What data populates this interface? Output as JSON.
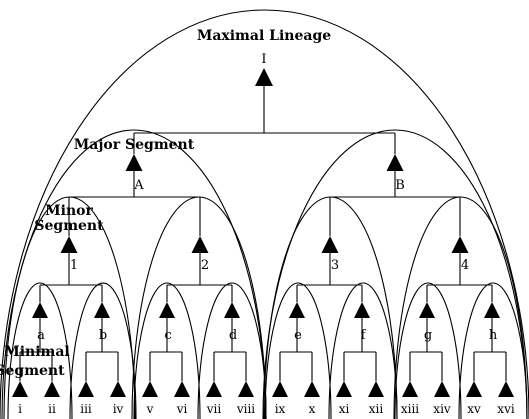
{
  "headings": {
    "maximal": "Maximal Lineage",
    "major": "Major Segment",
    "minor_line1": "Minor",
    "minor_line2": "Segment",
    "minimal_line1": "Minimal",
    "minimal_line2": "Segment"
  },
  "lineage": {
    "root": "I",
    "major": [
      "A",
      "B"
    ],
    "minor": [
      "1",
      "2",
      "3",
      "4"
    ],
    "minimal": [
      "a",
      "b",
      "c",
      "d",
      "e",
      "f",
      "g",
      "h"
    ],
    "leaves": [
      "i",
      "ii",
      "iii",
      "iv",
      "v",
      "vi",
      "vii",
      "viii",
      "ix",
      "x",
      "xi",
      "xii",
      "xiii",
      "xiv",
      "xv",
      "xvi"
    ]
  }
}
